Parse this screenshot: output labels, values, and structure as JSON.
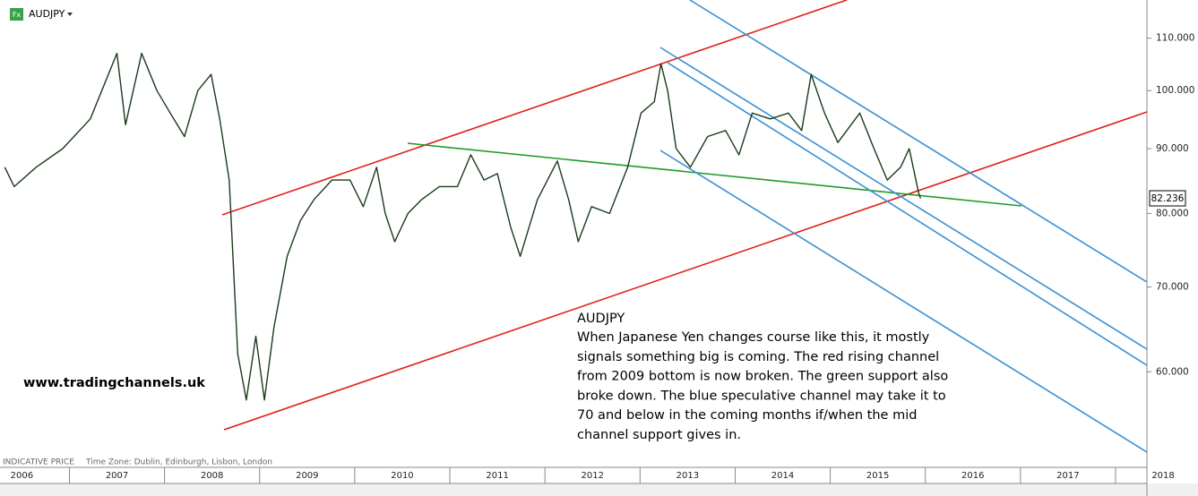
{
  "chart_data": {
    "type": "line",
    "log_scale": true,
    "price_label": "82.236",
    "watermark": "www.tradingchannels.uk",
    "footer": {
      "price_type": "INDICATIVE PRICE",
      "time_zone": "Time Zone: Dublin, Edinburgh, Lisbon, London"
    },
    "icon": "Fx",
    "annotation": {
      "title": "AUDJPY",
      "lines": [
        "When Japanese Yen changes course like this, it mostly",
        "signals something big is coming. The red rising channel",
        "from 2009 bottom is now broken. The green support also",
        "broke down. The blue speculative channel may take it to",
        "70 and below in the coming months if/when the mid",
        "channel support gives in."
      ]
    },
    "xlim": [
      2006.27,
      2018.33
    ],
    "xticks": [
      2006,
      2007,
      2008,
      2009,
      2010,
      2011,
      2012,
      2013,
      2014,
      2015,
      2016,
      2017,
      2018
    ],
    "ylim": [
      50.6,
      117.9
    ],
    "yticks": [
      {
        "value": 60,
        "label": "60.000"
      },
      {
        "value": 70,
        "label": "70.000"
      },
      {
        "value": 80,
        "label": "80.000"
      },
      {
        "value": 90,
        "label": "90.000"
      },
      {
        "value": 100,
        "label": "100.000"
      },
      {
        "value": 110,
        "label": "110.000"
      }
    ],
    "series": [
      {
        "name": "AUDJPY",
        "color": "#1a3a1a",
        "x": [
          2006.32,
          2006.42,
          2006.65,
          2006.93,
          2007.22,
          2007.5,
          2007.59,
          2007.76,
          2007.92,
          2008.06,
          2008.21,
          2008.35,
          2008.49,
          2008.58,
          2008.68,
          2008.77,
          2008.86,
          2008.96,
          2009.05,
          2009.15,
          2009.29,
          2009.43,
          2009.57,
          2009.76,
          2009.95,
          2010.09,
          2010.23,
          2010.32,
          2010.42,
          2010.56,
          2010.7,
          2010.89,
          2011.08,
          2011.22,
          2011.36,
          2011.5,
          2011.64,
          2011.74,
          2011.92,
          2012.13,
          2012.25,
          2012.35,
          2012.49,
          2012.68,
          2012.87,
          2013.01,
          2013.15,
          2013.22,
          2013.29,
          2013.38,
          2013.53,
          2013.71,
          2013.9,
          2014.04,
          2014.18,
          2014.37,
          2014.56,
          2014.7,
          2014.8,
          2014.94,
          2015.08,
          2015.31,
          2015.46,
          2015.6,
          2015.74,
          2015.83,
          2015.93,
          2015.95
        ],
        "values": [
          87,
          84,
          87,
          90,
          95,
          107,
          94,
          107,
          100,
          96,
          92,
          100,
          103,
          95,
          85,
          62,
          57,
          64,
          57,
          65,
          74,
          79,
          82,
          85,
          85,
          81,
          87,
          80,
          76,
          80,
          82,
          84,
          84,
          89,
          85,
          86,
          78,
          74,
          82,
          88,
          82,
          76,
          81,
          80,
          87,
          96,
          98,
          105,
          100,
          90,
          87,
          92,
          93,
          89,
          96,
          95,
          96,
          93,
          103,
          96,
          91,
          96,
          90,
          85,
          87,
          90,
          83,
          82.2
        ]
      }
    ]
  }
}
